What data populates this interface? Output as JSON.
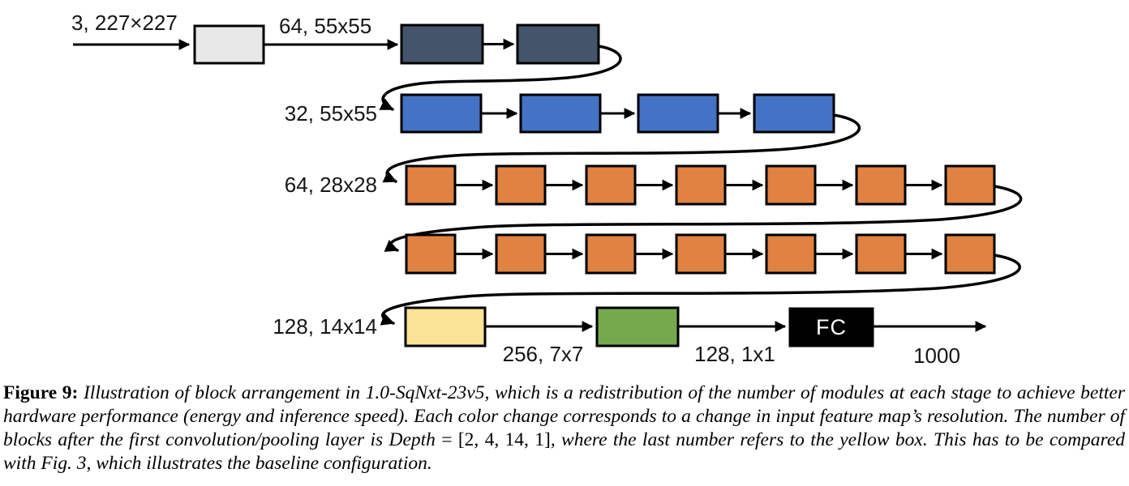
{
  "figure": {
    "edge_labels": {
      "input": "3, 227×227",
      "after_conv1": "64, 55x55",
      "stage2_input": "32, 55x55",
      "stage3_input": "64, 28x28",
      "stage4_input": "128, 14x14",
      "after_yellow": "256, 7x7",
      "after_green": "128, 1x1",
      "fc": "FC",
      "output": "1000"
    },
    "block_rows": [
      {
        "name": "conv1",
        "count": 1,
        "color": "#E9E8E8"
      },
      {
        "name": "stage1",
        "count": 2,
        "color": "#44546A"
      },
      {
        "name": "stage2",
        "count": 4,
        "color": "#4472C4"
      },
      {
        "name": "stage3-row1",
        "count": 7,
        "color": "#E08241"
      },
      {
        "name": "stage3-row2",
        "count": 7,
        "color": "#E08241"
      },
      {
        "name": "stage4-yellow",
        "count": 1,
        "color": "#FAE396"
      },
      {
        "name": "stage5-green",
        "count": 1,
        "color": "#76A94E"
      },
      {
        "name": "fc",
        "count": 1,
        "color": "#000000"
      }
    ],
    "stroke_color": "#000000"
  },
  "caption": {
    "label": "Figure 9:",
    "text_before_math": " Illustration of block arrangement in 1.0-SqNxt-23v5, which is a redistribution of the number of modules at each stage to achieve better hardware performance (energy and inference speed). Each color change corresponds to a change in input feature map’s resolution. The number of blocks after the first convolution/pooling layer is ",
    "math_var": "Depth",
    "math_rest": " = [2, 4, 14, 1]",
    "text_after_math": ", where the last number refers to the yellow box. This has to be compared with Fig. 3, which illustrates the baseline configuration."
  }
}
